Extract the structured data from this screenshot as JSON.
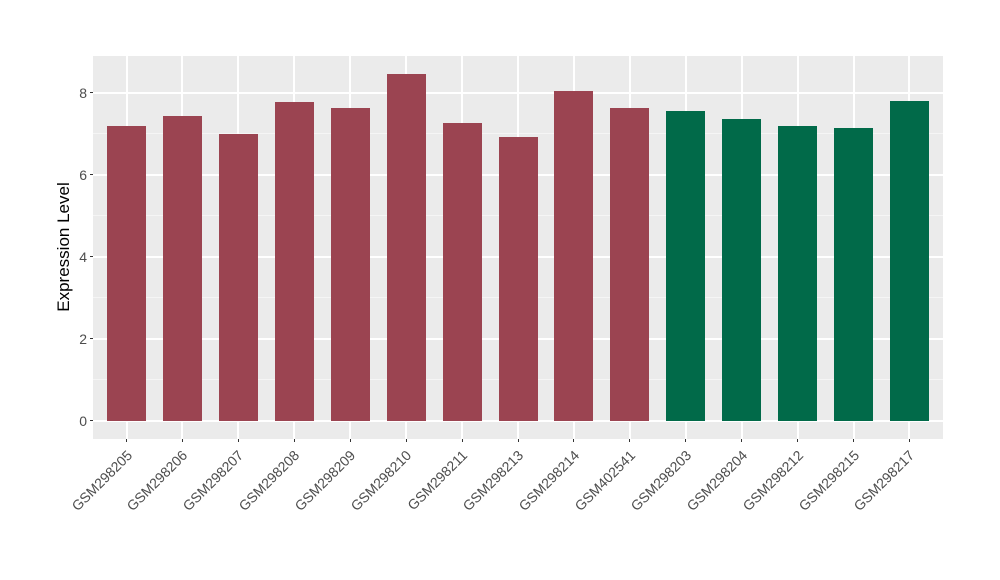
{
  "chart_data": {
    "type": "bar",
    "title": "",
    "xlabel": "",
    "ylabel": "Expression Level",
    "categories": [
      "GSM298205",
      "GSM298206",
      "GSM298207",
      "GSM298208",
      "GSM298209",
      "GSM298210",
      "GSM298211",
      "GSM298213",
      "GSM298214",
      "GSM402541",
      "GSM298203",
      "GSM298204",
      "GSM298212",
      "GSM298215",
      "GSM298217"
    ],
    "values": [
      7.2,
      7.44,
      7.01,
      7.78,
      7.63,
      8.45,
      7.26,
      6.93,
      8.05,
      7.63,
      7.56,
      7.37,
      7.19,
      7.14,
      7.81
    ],
    "bar_colors": [
      "#9B4451",
      "#9B4451",
      "#9B4451",
      "#9B4451",
      "#9B4451",
      "#9B4451",
      "#9B4451",
      "#9B4451",
      "#9B4451",
      "#9B4451",
      "#016A49",
      "#016A49",
      "#016A49",
      "#016A49",
      "#016A49"
    ],
    "yticks": [
      0,
      2,
      4,
      6,
      8
    ],
    "minor_yticks": [
      1,
      3,
      5,
      7
    ],
    "ylim": [
      -0.44,
      8.9
    ],
    "x_label_rotation_deg": 45,
    "legend": "none",
    "grid": "major+minor",
    "colors": {
      "group_maroon": "#9B4451",
      "group_green": "#016A49",
      "panel_background": "#EBEBEB",
      "major_gridline": "#FFFFFF",
      "minor_gridline": "#F5F5F5",
      "axis_text": "#4D4D4D",
      "axis_title": "#000000",
      "tick_mark": "#333333",
      "figure_background": "#FFFFFF"
    }
  }
}
